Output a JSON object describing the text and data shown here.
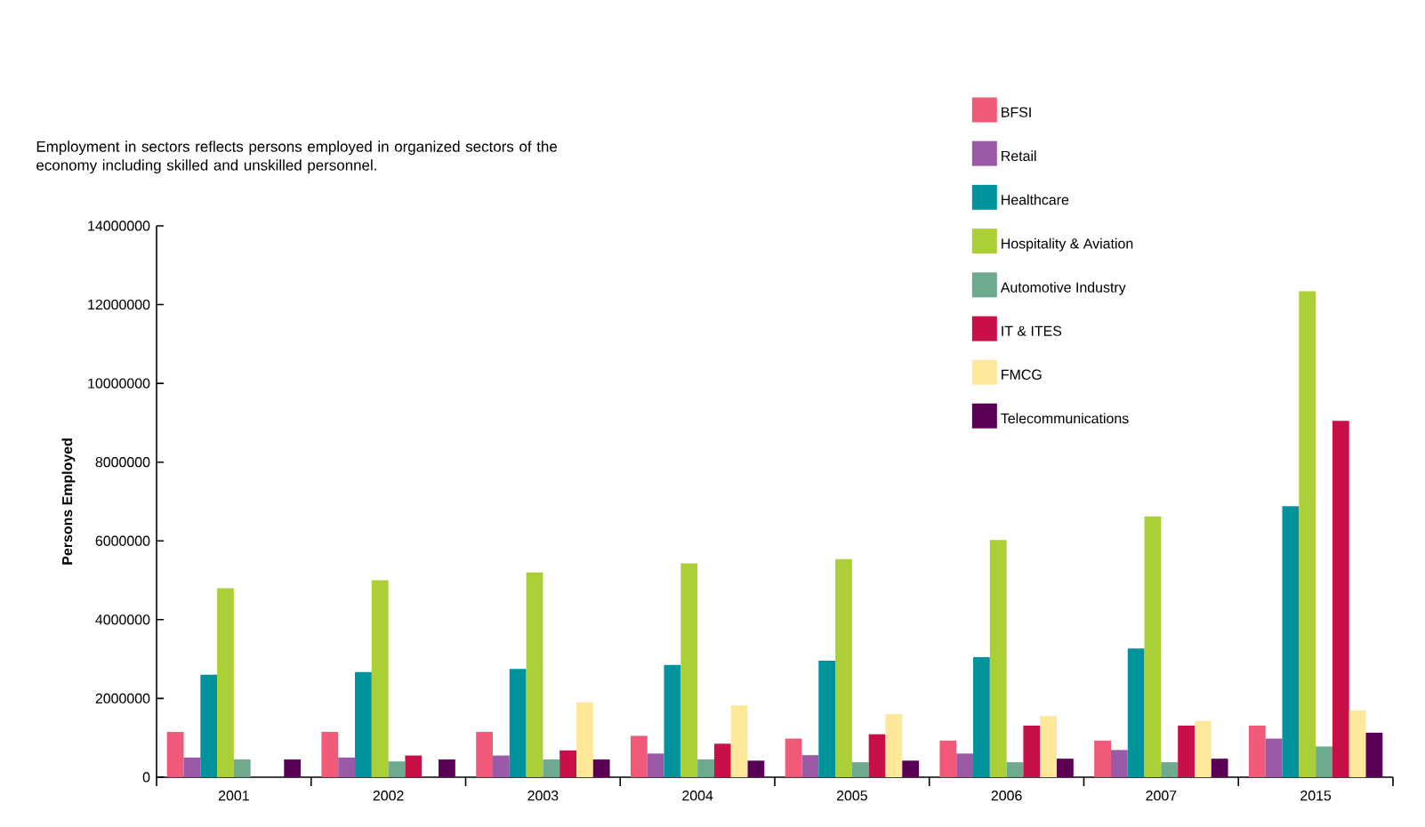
{
  "chart_data": {
    "type": "bar",
    "subtitle": "Employment in sectors reflects persons employed in organized sectors of the economy including skilled and unskilled personnel.",
    "ylabel": "Persons Employed",
    "categories": [
      "2001",
      "2002",
      "2003",
      "2004",
      "2005",
      "2006",
      "2007",
      "2015"
    ],
    "series": [
      {
        "name": "BFSI",
        "color": "#f05a78",
        "values": [
          1150000,
          1150000,
          1150000,
          1050000,
          980000,
          930000,
          930000,
          1310000
        ]
      },
      {
        "name": "Retail",
        "color": "#9b5aa5",
        "values": [
          500000,
          500000,
          550000,
          600000,
          560000,
          600000,
          690000,
          980000
        ]
      },
      {
        "name": "Healthcare",
        "color": "#00939b",
        "values": [
          2600000,
          2670000,
          2750000,
          2850000,
          2960000,
          3050000,
          3270000,
          6880000
        ]
      },
      {
        "name": "Hospitality & Aviation",
        "color": "#abd037",
        "values": [
          4800000,
          5000000,
          5200000,
          5430000,
          5540000,
          6020000,
          6620000,
          12340000
        ]
      },
      {
        "name": "Automotive Industry",
        "color": "#6daa8e",
        "values": [
          450000,
          400000,
          450000,
          450000,
          380000,
          380000,
          380000,
          780000
        ]
      },
      {
        "name": "IT & ITES",
        "color": "#c80f48",
        "values": [
          null,
          550000,
          680000,
          850000,
          1090000,
          1310000,
          1310000,
          9050000
        ]
      },
      {
        "name": "FMCG",
        "color": "#ffe89a",
        "values": [
          null,
          null,
          1900000,
          1820000,
          1600000,
          1550000,
          1430000,
          1690000
        ]
      },
      {
        "name": "Telecommunications",
        "color": "#5a0055",
        "values": [
          450000,
          450000,
          450000,
          420000,
          420000,
          470000,
          470000,
          1130000
        ]
      }
    ],
    "ylim": [
      0,
      14000000
    ],
    "yticks": [
      0,
      2000000,
      4000000,
      6000000,
      8000000,
      10000000,
      12000000,
      14000000
    ],
    "grid": false,
    "legend": "top right"
  }
}
